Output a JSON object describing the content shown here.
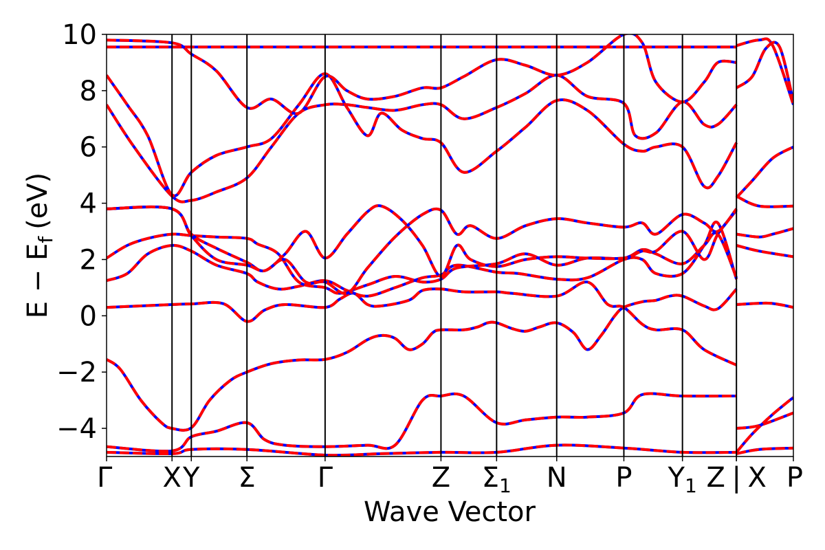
{
  "chart_data": {
    "type": "line",
    "xlabel": "Wave Vector",
    "ylabel_main": "E − E",
    "ylabel_sub": "f",
    "ylabel_unit": "(eV)",
    "ylim": [
      -5,
      10
    ],
    "xlim": [
      0,
      1
    ],
    "y_ticks": [
      -4,
      -2,
      0,
      2,
      4,
      6,
      8,
      10
    ],
    "y_tick_labels": [
      "−4",
      "−2",
      "0",
      "2",
      "4",
      "6",
      "8",
      "10"
    ],
    "k_points": [
      {
        "label": "Γ",
        "sub": "",
        "x": 0.0
      },
      {
        "label": "X",
        "sub": "",
        "x": 0.0953
      },
      {
        "label": "Y",
        "sub": "",
        "x": 0.1234
      },
      {
        "label": "Σ",
        "sub": "",
        "x": 0.2044
      },
      {
        "label": "Γ",
        "sub": "",
        "x": 0.3182
      },
      {
        "label": "Z",
        "sub": "",
        "x": 0.4869
      },
      {
        "label": "Σ",
        "sub": "1",
        "x": 0.5679
      },
      {
        "label": "N",
        "sub": "",
        "x": 0.6554
      },
      {
        "label": "P",
        "sub": "",
        "x": 0.7532
      },
      {
        "label": "Y",
        "sub": "1",
        "x": 0.8385
      },
      {
        "label": "Z",
        "sub": "",
        "x": 0.9171
      },
      {
        "label": "|",
        "sub": "",
        "x": 0.9171
      },
      {
        "label": "X",
        "sub": "",
        "x": 0.9171
      },
      {
        "label": "P",
        "sub": "",
        "x": 1.0
      }
    ],
    "grid": false,
    "legend": "none",
    "series_style": [
      {
        "color": "#0000ff",
        "dash": "solid"
      },
      {
        "color": "#ff0000",
        "dash": "dashed"
      }
    ],
    "bands": [
      [
        [
          0.0,
          -1.55
        ],
        [
          0.02,
          -1.9
        ],
        [
          0.05,
          -3.0
        ],
        [
          0.08,
          -3.8
        ],
        [
          0.0953,
          -4.0
        ],
        [
          0.1234,
          -3.98
        ],
        [
          0.15,
          -3.0
        ],
        [
          0.18,
          -2.3
        ],
        [
          0.2044,
          -2.0
        ],
        [
          0.24,
          -1.7
        ],
        [
          0.28,
          -1.57
        ],
        [
          0.3182,
          -1.55
        ],
        [
          0.35,
          -1.3
        ],
        [
          0.38,
          -0.85
        ],
        [
          0.4,
          -0.7
        ],
        [
          0.42,
          -0.8
        ],
        [
          0.44,
          -1.2
        ],
        [
          0.46,
          -1.0
        ],
        [
          0.475,
          -0.6
        ],
        [
          0.4869,
          -0.5
        ],
        [
          0.52,
          -0.5
        ],
        [
          0.54,
          -0.4
        ],
        [
          0.555,
          -0.25
        ],
        [
          0.5679,
          -0.25
        ],
        [
          0.59,
          -0.45
        ],
        [
          0.61,
          -0.55
        ],
        [
          0.63,
          -0.4
        ],
        [
          0.6554,
          -0.25
        ],
        [
          0.68,
          -0.6
        ],
        [
          0.7,
          -1.2
        ],
        [
          0.72,
          -0.7
        ],
        [
          0.74,
          0.0
        ],
        [
          0.7532,
          0.3
        ],
        [
          0.78,
          0.5
        ],
        [
          0.8,
          0.55
        ],
        [
          0.82,
          0.7
        ],
        [
          0.8385,
          0.7
        ],
        [
          0.87,
          0.35
        ],
        [
          0.89,
          0.25
        ],
        [
          0.9171,
          0.95
        ]
      ],
      [
        [
          0.0,
          0.3
        ],
        [
          0.0953,
          0.4
        ],
        [
          0.1234,
          0.42
        ],
        [
          0.17,
          0.43
        ],
        [
          0.2044,
          -0.2
        ],
        [
          0.23,
          0.2
        ],
        [
          0.26,
          0.4
        ],
        [
          0.3182,
          0.3
        ],
        [
          0.34,
          0.6
        ],
        [
          0.36,
          0.8
        ],
        [
          0.38,
          0.4
        ],
        [
          0.4,
          0.35
        ],
        [
          0.44,
          0.55
        ],
        [
          0.46,
          0.9
        ],
        [
          0.4869,
          0.95
        ],
        [
          0.52,
          0.85
        ],
        [
          0.5679,
          0.85
        ],
        [
          0.59,
          0.8
        ],
        [
          0.6554,
          0.7
        ],
        [
          0.7,
          1.2
        ],
        [
          0.73,
          0.4
        ],
        [
          0.7532,
          0.3
        ],
        [
          0.78,
          -0.3
        ],
        [
          0.8,
          -0.5
        ],
        [
          0.8385,
          -0.5
        ],
        [
          0.87,
          -1.2
        ],
        [
          0.9171,
          -1.75
        ]
      ],
      [
        [
          0.0,
          1.25
        ],
        [
          0.03,
          1.5
        ],
        [
          0.06,
          2.2
        ],
        [
          0.0953,
          2.5
        ],
        [
          0.1234,
          2.3
        ],
        [
          0.16,
          1.8
        ],
        [
          0.2044,
          1.5
        ],
        [
          0.22,
          1.2
        ],
        [
          0.25,
          0.95
        ],
        [
          0.28,
          1.05
        ],
        [
          0.3182,
          1.25
        ],
        [
          0.35,
          0.9
        ],
        [
          0.38,
          0.7
        ],
        [
          0.42,
          1.0
        ],
        [
          0.46,
          1.35
        ],
        [
          0.4869,
          1.45
        ],
        [
          0.51,
          1.8
        ],
        [
          0.5679,
          1.55
        ],
        [
          0.6,
          1.5
        ],
        [
          0.6554,
          1.3
        ],
        [
          0.7,
          1.35
        ],
        [
          0.7532,
          2.0
        ],
        [
          0.78,
          2.0
        ],
        [
          0.8,
          1.5
        ],
        [
          0.8385,
          1.5
        ],
        [
          0.87,
          2.5
        ],
        [
          0.89,
          3.3
        ],
        [
          0.9171,
          1.3
        ]
      ],
      [
        [
          0.0,
          2.05
        ],
        [
          0.03,
          2.5
        ],
        [
          0.06,
          2.75
        ],
        [
          0.0953,
          2.9
        ],
        [
          0.1234,
          2.85
        ],
        [
          0.16,
          2.8
        ],
        [
          0.2044,
          2.75
        ],
        [
          0.22,
          2.55
        ],
        [
          0.25,
          2.2
        ],
        [
          0.28,
          1.2
        ],
        [
          0.3182,
          1.0
        ],
        [
          0.34,
          0.8
        ],
        [
          0.38,
          1.1
        ],
        [
          0.42,
          1.4
        ],
        [
          0.46,
          1.2
        ],
        [
          0.4869,
          1.3
        ],
        [
          0.51,
          1.7
        ],
        [
          0.5679,
          1.85
        ],
        [
          0.61,
          2.2
        ],
        [
          0.6554,
          1.8
        ],
        [
          0.7,
          2.05
        ],
        [
          0.7532,
          2.05
        ],
        [
          0.78,
          2.35
        ],
        [
          0.8,
          2.2
        ],
        [
          0.8385,
          1.85
        ],
        [
          0.87,
          2.5
        ],
        [
          0.89,
          2.9
        ],
        [
          0.9171,
          1.35
        ]
      ],
      [
        [
          0.0,
          3.8
        ],
        [
          0.0953,
          3.8
        ],
        [
          0.1234,
          2.9
        ],
        [
          0.16,
          2.4
        ],
        [
          0.2044,
          1.9
        ],
        [
          0.23,
          1.6
        ],
        [
          0.26,
          2.2
        ],
        [
          0.29,
          3.0
        ],
        [
          0.3182,
          2.05
        ],
        [
          0.35,
          2.9
        ],
        [
          0.38,
          3.7
        ],
        [
          0.4,
          3.9
        ],
        [
          0.43,
          3.4
        ],
        [
          0.46,
          2.5
        ],
        [
          0.4869,
          1.4
        ],
        [
          0.51,
          2.5
        ],
        [
          0.53,
          2.0
        ],
        [
          0.5679,
          1.75
        ],
        [
          0.61,
          2.0
        ],
        [
          0.6554,
          2.1
        ],
        [
          0.7,
          2.05
        ],
        [
          0.7532,
          2.05
        ],
        [
          0.78,
          2.3
        ],
        [
          0.8,
          2.3
        ],
        [
          0.8385,
          3.0
        ],
        [
          0.87,
          2.0
        ],
        [
          0.89,
          2.9
        ],
        [
          0.9171,
          3.75
        ]
      ],
      [
        [
          0.0,
          3.8
        ],
        [
          0.0953,
          3.8
        ],
        [
          0.1234,
          2.85
        ],
        [
          0.16,
          2.0
        ],
        [
          0.2044,
          1.8
        ],
        [
          0.23,
          1.6
        ],
        [
          0.26,
          2.0
        ],
        [
          0.29,
          1.2
        ],
        [
          0.3182,
          1.2
        ],
        [
          0.35,
          0.8
        ],
        [
          0.38,
          1.7
        ],
        [
          0.42,
          2.8
        ],
        [
          0.46,
          3.6
        ],
        [
          0.4869,
          3.75
        ],
        [
          0.51,
          2.9
        ],
        [
          0.53,
          3.2
        ],
        [
          0.5679,
          2.75
        ],
        [
          0.61,
          3.2
        ],
        [
          0.6554,
          3.45
        ],
        [
          0.7,
          3.3
        ],
        [
          0.7532,
          3.15
        ],
        [
          0.78,
          3.3
        ],
        [
          0.8,
          2.9
        ],
        [
          0.8385,
          3.6
        ],
        [
          0.87,
          3.3
        ],
        [
          0.89,
          3.0
        ],
        [
          0.9171,
          3.8
        ]
      ],
      [
        [
          0.0,
          7.5
        ],
        [
          0.04,
          6.0
        ],
        [
          0.0953,
          4.25
        ],
        [
          0.1234,
          4.1
        ],
        [
          0.16,
          4.4
        ],
        [
          0.2044,
          4.9
        ],
        [
          0.24,
          6.0
        ],
        [
          0.28,
          7.2
        ],
        [
          0.3182,
          7.5
        ],
        [
          0.35,
          7.5
        ],
        [
          0.38,
          7.4
        ],
        [
          0.42,
          7.3
        ],
        [
          0.46,
          7.5
        ],
        [
          0.4869,
          7.5
        ],
        [
          0.52,
          7.0
        ],
        [
          0.5679,
          7.4
        ],
        [
          0.61,
          7.9
        ],
        [
          0.6554,
          8.55
        ],
        [
          0.7,
          7.8
        ],
        [
          0.7532,
          7.55
        ],
        [
          0.77,
          6.4
        ],
        [
          0.8,
          6.5
        ],
        [
          0.8385,
          7.6
        ],
        [
          0.87,
          6.8
        ],
        [
          0.89,
          6.8
        ],
        [
          0.9171,
          7.5
        ]
      ],
      [
        [
          0.0,
          8.55
        ],
        [
          0.03,
          7.5
        ],
        [
          0.06,
          6.4
        ],
        [
          0.0953,
          4.3
        ],
        [
          0.1234,
          5.1
        ],
        [
          0.16,
          5.7
        ],
        [
          0.2044,
          6.0
        ],
        [
          0.24,
          6.3
        ],
        [
          0.28,
          7.5
        ],
        [
          0.3182,
          8.6
        ],
        [
          0.35,
          7.4
        ],
        [
          0.38,
          6.4
        ],
        [
          0.4,
          7.2
        ],
        [
          0.43,
          6.6
        ],
        [
          0.46,
          6.3
        ],
        [
          0.4869,
          6.15
        ],
        [
          0.52,
          5.1
        ],
        [
          0.5679,
          5.85
        ],
        [
          0.61,
          6.7
        ],
        [
          0.6554,
          7.65
        ],
        [
          0.7,
          7.3
        ],
        [
          0.7532,
          6.1
        ],
        [
          0.78,
          5.85
        ],
        [
          0.8,
          6.0
        ],
        [
          0.8385,
          6.0
        ],
        [
          0.87,
          4.6
        ],
        [
          0.89,
          4.95
        ],
        [
          0.9171,
          6.15
        ]
      ],
      [
        [
          0.0,
          9.8
        ],
        [
          0.0953,
          9.7
        ],
        [
          0.1234,
          9.3
        ],
        [
          0.16,
          8.7
        ],
        [
          0.2044,
          7.4
        ],
        [
          0.24,
          7.7
        ],
        [
          0.28,
          7.2
        ],
        [
          0.3182,
          8.5
        ],
        [
          0.35,
          8.0
        ],
        [
          0.38,
          7.7
        ],
        [
          0.42,
          7.8
        ],
        [
          0.46,
          8.1
        ],
        [
          0.4869,
          8.1
        ],
        [
          0.52,
          8.5
        ],
        [
          0.5679,
          9.1
        ],
        [
          0.61,
          8.9
        ],
        [
          0.6554,
          8.55
        ],
        [
          0.7,
          9.0
        ],
        [
          0.7532,
          10.0
        ],
        [
          0.78,
          9.7
        ],
        [
          0.8,
          8.3
        ],
        [
          0.8385,
          7.6
        ],
        [
          0.87,
          8.3
        ],
        [
          0.89,
          9.0
        ],
        [
          0.9171,
          9.0
        ]
      ],
      [
        [
          0.0,
          9.55
        ],
        [
          0.0953,
          9.55
        ],
        [
          0.1234,
          9.55
        ],
        [
          0.2044,
          9.55
        ],
        [
          0.3182,
          9.55
        ],
        [
          0.4869,
          9.55
        ],
        [
          0.5679,
          9.55
        ],
        [
          0.6554,
          9.55
        ],
        [
          0.7532,
          9.55
        ],
        [
          0.8385,
          9.55
        ],
        [
          0.9171,
          9.55
        ]
      ],
      [
        [
          0.0,
          -4.65
        ],
        [
          0.0953,
          -4.8
        ],
        [
          0.1234,
          -4.3
        ],
        [
          0.16,
          -4.1
        ],
        [
          0.2044,
          -3.8
        ],
        [
          0.23,
          -4.4
        ],
        [
          0.26,
          -4.6
        ],
        [
          0.3182,
          -4.65
        ],
        [
          0.38,
          -4.6
        ],
        [
          0.42,
          -4.6
        ],
        [
          0.46,
          -3.0
        ],
        [
          0.4869,
          -2.85
        ],
        [
          0.52,
          -2.85
        ],
        [
          0.5679,
          -3.8
        ],
        [
          0.61,
          -3.7
        ],
        [
          0.6554,
          -3.6
        ],
        [
          0.7,
          -3.6
        ],
        [
          0.7532,
          -3.45
        ],
        [
          0.78,
          -2.8
        ],
        [
          0.8385,
          -2.85
        ],
        [
          0.9171,
          -2.85
        ]
      ],
      [
        [
          0.0,
          -4.85
        ],
        [
          0.0953,
          -4.9
        ],
        [
          0.1234,
          -4.75
        ],
        [
          0.2044,
          -4.75
        ],
        [
          0.3182,
          -4.95
        ],
        [
          0.4,
          -4.9
        ],
        [
          0.4869,
          -4.85
        ],
        [
          0.5679,
          -4.85
        ],
        [
          0.6554,
          -4.6
        ],
        [
          0.7532,
          -4.7
        ],
        [
          0.8385,
          -4.85
        ],
        [
          0.9171,
          -4.85
        ]
      ],
      [
        [
          0.9171,
          4.2
        ],
        [
          0.94,
          4.8
        ],
        [
          0.97,
          5.6
        ],
        [
          1.0,
          6.0
        ]
      ],
      [
        [
          0.9171,
          4.25
        ],
        [
          0.95,
          3.9
        ],
        [
          1.0,
          3.9
        ]
      ],
      [
        [
          0.9171,
          2.9
        ],
        [
          0.95,
          2.8
        ],
        [
          0.97,
          2.9
        ],
        [
          1.0,
          3.1
        ]
      ],
      [
        [
          0.9171,
          2.5
        ],
        [
          0.95,
          2.3
        ],
        [
          1.0,
          2.1
        ]
      ],
      [
        [
          0.9171,
          0.4
        ],
        [
          0.96,
          0.45
        ],
        [
          0.98,
          0.4
        ],
        [
          1.0,
          0.3
        ]
      ],
      [
        [
          0.9171,
          9.6
        ],
        [
          0.95,
          9.8
        ],
        [
          0.97,
          9.6
        ],
        [
          1.0,
          7.5
        ]
      ],
      [
        [
          0.9171,
          8.1
        ],
        [
          0.94,
          8.5
        ],
        [
          0.96,
          9.5
        ],
        [
          0.98,
          9.55
        ],
        [
          1.0,
          7.6
        ]
      ],
      [
        [
          0.9171,
          -4.0
        ],
        [
          0.95,
          -3.9
        ],
        [
          1.0,
          -3.45
        ]
      ],
      [
        [
          0.9171,
          -4.85
        ],
        [
          0.94,
          -4.2
        ],
        [
          0.97,
          -3.5
        ],
        [
          1.0,
          -2.9
        ]
      ],
      [
        [
          0.9171,
          -4.9
        ],
        [
          0.95,
          -4.75
        ],
        [
          1.0,
          -4.7
        ]
      ]
    ]
  }
}
